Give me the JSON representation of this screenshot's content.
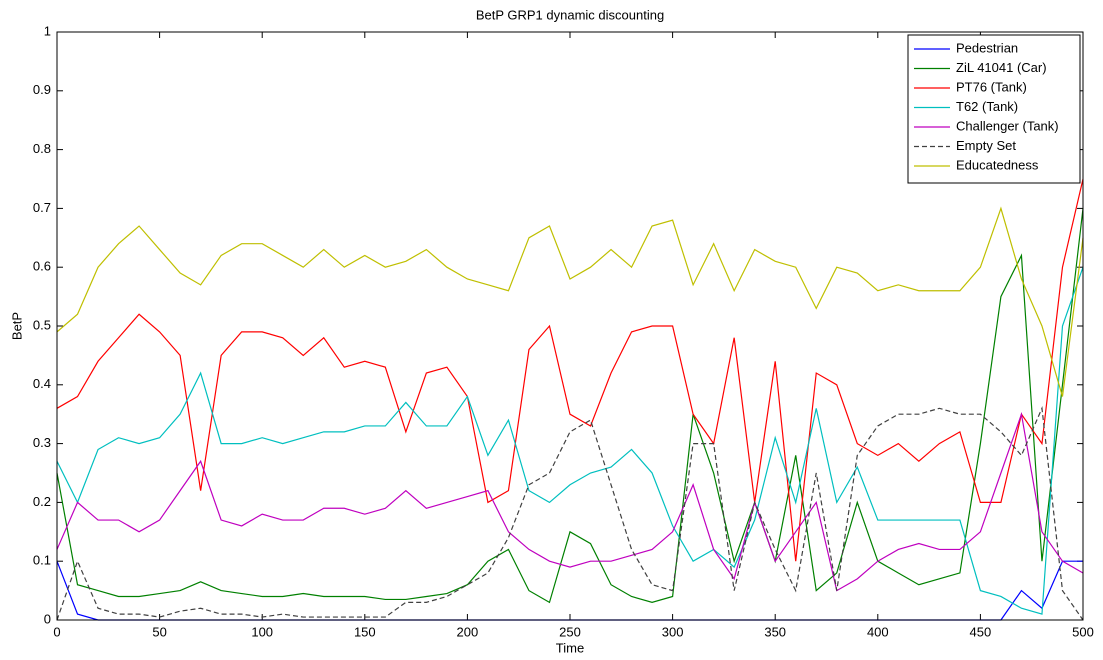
{
  "chart_data": {
    "type": "line",
    "title": "BetP GRP1 dynamic discounting",
    "xlabel": "Time",
    "ylabel": "BetP",
    "x": [
      0,
      10,
      20,
      30,
      40,
      50,
      60,
      70,
      80,
      90,
      100,
      110,
      120,
      130,
      140,
      150,
      160,
      170,
      180,
      190,
      200,
      210,
      220,
      230,
      240,
      250,
      260,
      270,
      280,
      290,
      300,
      310,
      320,
      330,
      340,
      350,
      360,
      370,
      380,
      390,
      400,
      410,
      420,
      430,
      440,
      450,
      460,
      470,
      480,
      490,
      500
    ],
    "series": [
      {
        "name": "Pedestrian",
        "color": "#0000ff",
        "style": "solid",
        "values": [
          0.1,
          0.01,
          0,
          0,
          0,
          0,
          0,
          0,
          0,
          0,
          0,
          0,
          0,
          0,
          0,
          0,
          0,
          0,
          0,
          0,
          0,
          0,
          0,
          0,
          0,
          0,
          0,
          0,
          0,
          0,
          0,
          0,
          0,
          0,
          0,
          0,
          0,
          0,
          0,
          0,
          0,
          0,
          0,
          0,
          0,
          0,
          0,
          0.05,
          0.02,
          0.1,
          0.1
        ]
      },
      {
        "name": "ZiL 41041 (Car)",
        "color": "#008000",
        "style": "solid",
        "values": [
          0.25,
          0.06,
          0.05,
          0.04,
          0.04,
          0.045,
          0.05,
          0.065,
          0.05,
          0.045,
          0.04,
          0.04,
          0.045,
          0.04,
          0.04,
          0.04,
          0.035,
          0.035,
          0.04,
          0.045,
          0.06,
          0.1,
          0.12,
          0.05,
          0.03,
          0.15,
          0.13,
          0.06,
          0.04,
          0.03,
          0.04,
          0.35,
          0.25,
          0.1,
          0.2,
          0.1,
          0.28,
          0.05,
          0.08,
          0.2,
          0.1,
          0.08,
          0.06,
          0.07,
          0.08,
          0.3,
          0.55,
          0.62,
          0.1,
          0.4,
          0.7
        ]
      },
      {
        "name": "PT76 (Tank)",
        "color": "#ff0000",
        "style": "solid",
        "values": [
          0.36,
          0.38,
          0.44,
          0.48,
          0.52,
          0.49,
          0.45,
          0.22,
          0.45,
          0.49,
          0.49,
          0.48,
          0.45,
          0.48,
          0.43,
          0.44,
          0.43,
          0.32,
          0.42,
          0.43,
          0.38,
          0.2,
          0.22,
          0.46,
          0.5,
          0.35,
          0.33,
          0.42,
          0.49,
          0.5,
          0.5,
          0.35,
          0.3,
          0.48,
          0.2,
          0.44,
          0.1,
          0.42,
          0.4,
          0.3,
          0.28,
          0.3,
          0.27,
          0.3,
          0.32,
          0.2,
          0.2,
          0.35,
          0.3,
          0.6,
          0.75
        ]
      },
      {
        "name": "T62 (Tank)",
        "color": "#00bfbf",
        "style": "solid",
        "values": [
          0.27,
          0.2,
          0.29,
          0.31,
          0.3,
          0.31,
          0.35,
          0.42,
          0.3,
          0.3,
          0.31,
          0.3,
          0.31,
          0.32,
          0.32,
          0.33,
          0.33,
          0.37,
          0.33,
          0.33,
          0.38,
          0.28,
          0.34,
          0.22,
          0.2,
          0.23,
          0.25,
          0.26,
          0.29,
          0.25,
          0.16,
          0.1,
          0.12,
          0.09,
          0.17,
          0.31,
          0.2,
          0.36,
          0.2,
          0.26,
          0.17,
          0.17,
          0.17,
          0.17,
          0.17,
          0.05,
          0.04,
          0.02,
          0.01,
          0.5,
          0.6
        ]
      },
      {
        "name": "Challenger (Tank)",
        "color": "#bf00bf",
        "style": "solid",
        "values": [
          0.12,
          0.2,
          0.17,
          0.17,
          0.15,
          0.17,
          0.22,
          0.27,
          0.17,
          0.16,
          0.18,
          0.17,
          0.17,
          0.19,
          0.19,
          0.18,
          0.19,
          0.22,
          0.19,
          0.2,
          0.21,
          0.22,
          0.15,
          0.12,
          0.1,
          0.09,
          0.1,
          0.1,
          0.11,
          0.12,
          0.15,
          0.23,
          0.12,
          0.07,
          0.2,
          0.1,
          0.15,
          0.2,
          0.05,
          0.07,
          0.1,
          0.12,
          0.13,
          0.12,
          0.12,
          0.15,
          0.25,
          0.35,
          0.15,
          0.1,
          0.08
        ]
      },
      {
        "name": "Empty Set",
        "color": "#404040",
        "style": "dashed",
        "values": [
          0,
          0.1,
          0.02,
          0.01,
          0.01,
          0.005,
          0.015,
          0.02,
          0.01,
          0.01,
          0.005,
          0.01,
          0.005,
          0.005,
          0.005,
          0.005,
          0.005,
          0.03,
          0.03,
          0.04,
          0.06,
          0.08,
          0.14,
          0.23,
          0.25,
          0.32,
          0.34,
          0.23,
          0.12,
          0.06,
          0.05,
          0.3,
          0.3,
          0.05,
          0.2,
          0.12,
          0.05,
          0.25,
          0.05,
          0.28,
          0.33,
          0.35,
          0.35,
          0.36,
          0.35,
          0.35,
          0.32,
          0.28,
          0.36,
          0.05,
          0
        ]
      },
      {
        "name": "Educatedness",
        "color": "#bfbf00",
        "style": "solid",
        "values": [
          0.49,
          0.52,
          0.6,
          0.64,
          0.67,
          0.63,
          0.59,
          0.57,
          0.62,
          0.64,
          0.64,
          0.62,
          0.6,
          0.63,
          0.6,
          0.62,
          0.6,
          0.61,
          0.63,
          0.6,
          0.58,
          0.57,
          0.56,
          0.65,
          0.67,
          0.58,
          0.6,
          0.63,
          0.6,
          0.67,
          0.68,
          0.57,
          0.64,
          0.56,
          0.63,
          0.61,
          0.6,
          0.53,
          0.6,
          0.59,
          0.56,
          0.57,
          0.56,
          0.56,
          0.56,
          0.6,
          0.7,
          0.58,
          0.5,
          0.38,
          0.65
        ]
      }
    ],
    "xlim": [
      0,
      500
    ],
    "xticks": [
      0,
      50,
      100,
      150,
      200,
      250,
      300,
      350,
      400,
      450,
      500
    ],
    "ylim": [
      0,
      1
    ],
    "yticks": [
      0,
      0.1,
      0.2,
      0.3,
      0.4,
      0.5,
      0.6,
      0.7,
      0.8,
      0.9,
      1
    ],
    "grid": false,
    "legend": "top-right"
  }
}
